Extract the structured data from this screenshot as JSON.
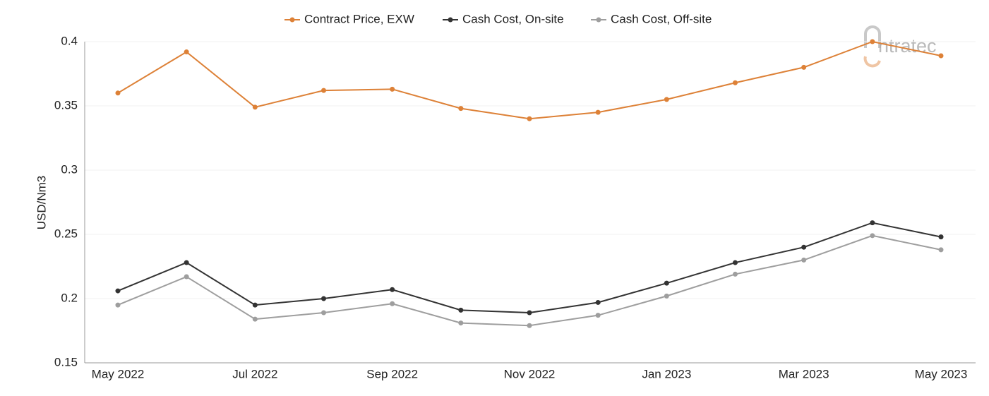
{
  "chart_data": {
    "type": "line",
    "ylabel": "USD/Nm3",
    "watermark": "ntratec",
    "categories": [
      "May 2022",
      null,
      "Jul 2022",
      null,
      "Sep 2022",
      null,
      "Nov 2022",
      null,
      "Jan 2023",
      null,
      "Mar 2023",
      null,
      "May 2023"
    ],
    "series": [
      {
        "name": "Contract Price, EXW",
        "color": "#dd8137",
        "values": [
          0.36,
          0.392,
          0.349,
          0.362,
          0.363,
          0.348,
          0.34,
          0.345,
          0.355,
          0.368,
          0.38,
          0.4,
          0.389
        ]
      },
      {
        "name": "Cash Cost, On-site",
        "color": "#333333",
        "values": [
          0.206,
          0.228,
          0.195,
          0.2,
          0.207,
          0.191,
          0.189,
          0.197,
          0.212,
          0.228,
          0.24,
          0.259,
          0.248
        ]
      },
      {
        "name": "Cash Cost, Off-site",
        "color": "#9e9e9e",
        "values": [
          0.195,
          0.217,
          0.184,
          0.189,
          0.196,
          0.181,
          0.179,
          0.187,
          0.202,
          0.219,
          0.23,
          0.249,
          0.238
        ]
      }
    ],
    "ylim": [
      0.15,
      0.4
    ],
    "yticks": [
      0.15,
      0.2,
      0.25,
      0.3,
      0.35,
      0.4
    ],
    "grid": true,
    "legend": "top"
  }
}
